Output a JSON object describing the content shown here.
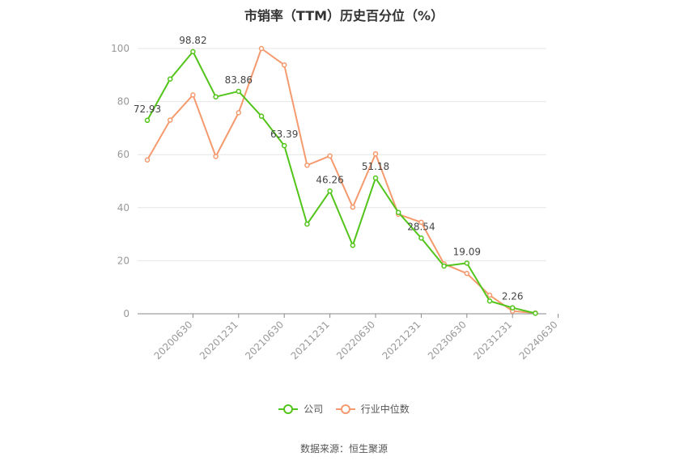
{
  "chart_data": {
    "type": "line",
    "title": "市销率（TTM）历史百分位（%）",
    "ylim": [
      0,
      100
    ],
    "yticks": [
      0,
      20,
      40,
      60,
      80,
      100
    ],
    "grid": true,
    "legend_position": "bottom",
    "tick_labels": [
      "20200630",
      "20201231",
      "20210630",
      "20211231",
      "20220630",
      "20221231",
      "20230630",
      "20231231",
      "20240630"
    ],
    "series": [
      {
        "name": "公司",
        "color": "#52c41a",
        "values": [
          72.93,
          88.5,
          98.82,
          81.8,
          83.86,
          74.5,
          63.39,
          33.8,
          46.26,
          25.8,
          51.18,
          38.2,
          28.54,
          18.0,
          19.09,
          4.8,
          2.26,
          0.2
        ],
        "labels": [
          "72.93",
          null,
          "98.82",
          null,
          "83.86",
          null,
          "63.39",
          null,
          "46.26",
          null,
          "51.18",
          null,
          "28.54",
          null,
          "19.09",
          null,
          "2.26",
          null
        ]
      },
      {
        "name": "行业中位数",
        "color": "#f59a6e",
        "values": [
          58.0,
          73.0,
          82.5,
          59.3,
          75.8,
          100.0,
          93.8,
          56.0,
          59.5,
          40.2,
          60.3,
          37.5,
          34.5,
          18.8,
          15.2,
          7.0,
          1.0,
          0.3
        ]
      }
    ]
  },
  "source_text": "数据来源：恒生聚源"
}
